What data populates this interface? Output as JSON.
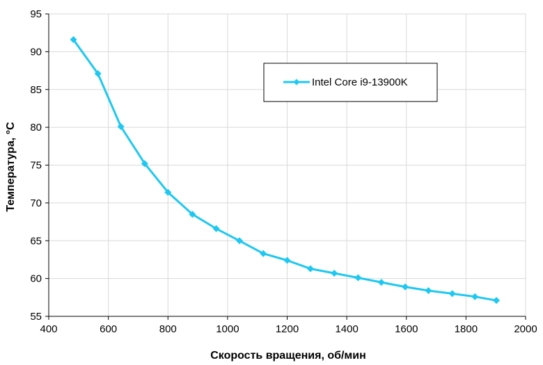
{
  "chart_data": {
    "type": "line",
    "xlabel": "Скорость вращения, об/мин",
    "ylabel": "Температура, °С",
    "xlim": [
      400,
      2000
    ],
    "ylim": [
      55,
      95
    ],
    "xticks": [
      400,
      600,
      800,
      1000,
      1200,
      1400,
      1600,
      1800,
      2000
    ],
    "yticks": [
      55,
      60,
      65,
      70,
      75,
      80,
      85,
      90,
      95
    ],
    "grid": true,
    "legend_position": "top-right",
    "series": [
      {
        "name": "Intel Core i9-13900K",
        "color": "#1ec8f0",
        "marker": "diamond",
        "x": [
          483,
          565,
          642,
          722,
          800,
          882,
          962,
          1040,
          1120,
          1200,
          1278,
          1358,
          1438,
          1516,
          1596,
          1674,
          1754,
          1830,
          1902
        ],
        "y": [
          91.6,
          87.1,
          80.1,
          75.2,
          71.4,
          68.5,
          66.6,
          65.0,
          63.3,
          62.4,
          61.3,
          60.7,
          60.1,
          59.5,
          58.9,
          58.4,
          58.0,
          57.6,
          57.1
        ]
      }
    ]
  }
}
